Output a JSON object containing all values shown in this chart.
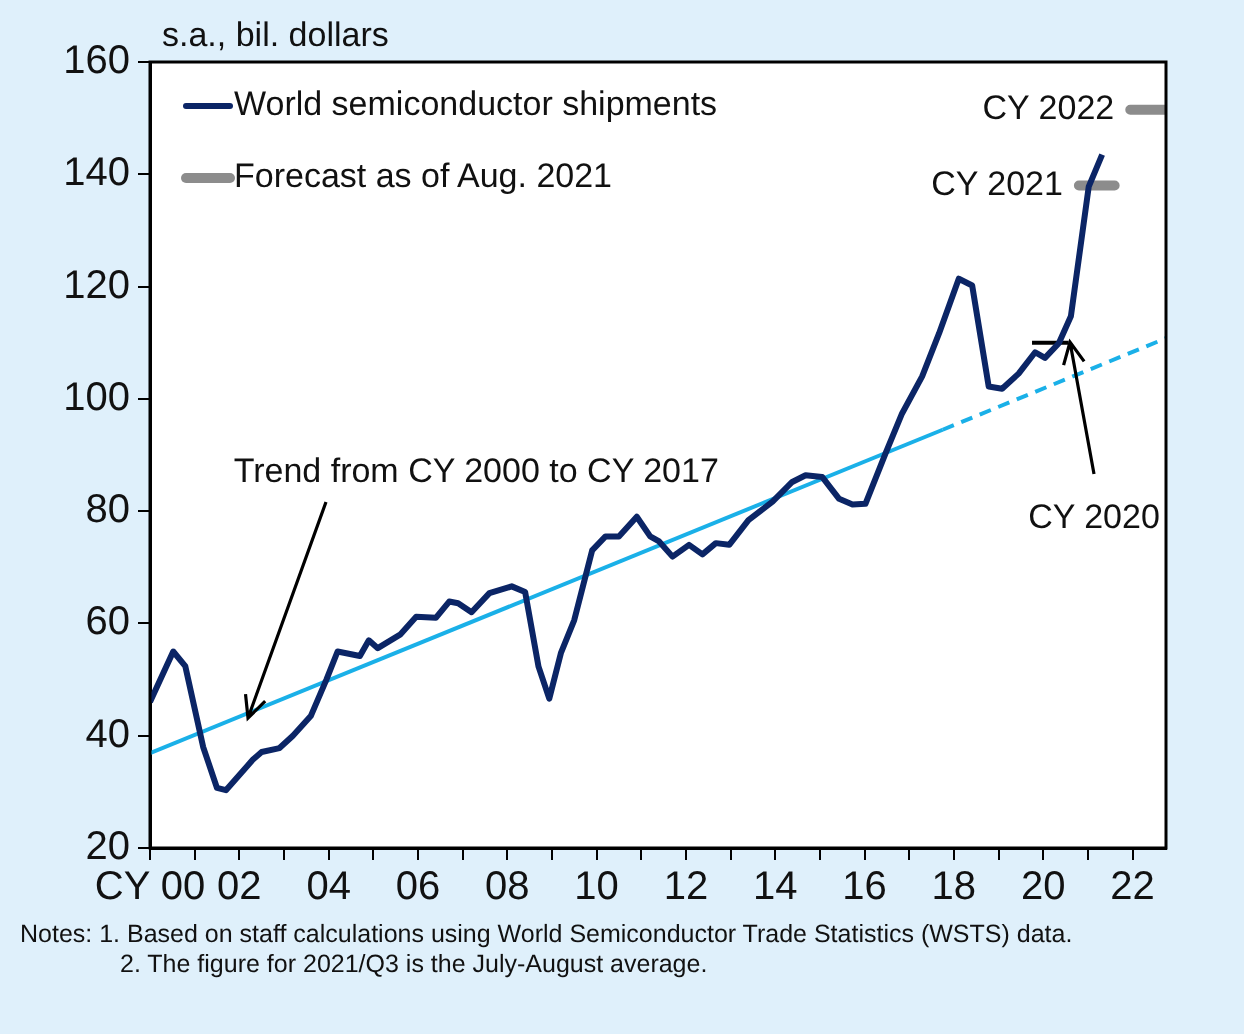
{
  "chart_data": {
    "type": "line",
    "ylabel": "s.a., bil. dollars",
    "xlim": [
      2000,
      2022.75
    ],
    "ylim": [
      20,
      160
    ],
    "xticks": [
      {
        "value": 2000,
        "label": "CY 00"
      },
      {
        "value": 2001,
        "label": null
      },
      {
        "value": 2002,
        "label": "02"
      },
      {
        "value": 2003,
        "label": null
      },
      {
        "value": 2004,
        "label": "04"
      },
      {
        "value": 2005,
        "label": null
      },
      {
        "value": 2006,
        "label": "06"
      },
      {
        "value": 2007,
        "label": null
      },
      {
        "value": 2008,
        "label": "08"
      },
      {
        "value": 2009,
        "label": null
      },
      {
        "value": 2010,
        "label": "10"
      },
      {
        "value": 2011,
        "label": null
      },
      {
        "value": 2012,
        "label": "12"
      },
      {
        "value": 2013,
        "label": null
      },
      {
        "value": 2014,
        "label": "14"
      },
      {
        "value": 2015,
        "label": null
      },
      {
        "value": 2016,
        "label": "16"
      },
      {
        "value": 2017,
        "label": null
      },
      {
        "value": 2018,
        "label": "18"
      },
      {
        "value": 2019,
        "label": null
      },
      {
        "value": 2020,
        "label": "20"
      },
      {
        "value": 2021,
        "label": null
      },
      {
        "value": 2022,
        "label": "22"
      }
    ],
    "yticks": [
      20,
      40,
      60,
      80,
      100,
      120,
      140,
      160
    ],
    "grid": false,
    "legend": "top left",
    "marker": "none",
    "line_style": "solid",
    "series": [
      {
        "name": "World semiconductor shipments",
        "color": "#0b2566",
        "x": [
          2000.0,
          2000.52,
          2000.79,
          2001.19,
          2001.5,
          2001.7,
          2002.3,
          2002.5,
          2002.9,
          2003.2,
          2003.6,
          2003.95,
          2004.2,
          2004.7,
          2004.9,
          2005.1,
          2005.6,
          2005.96,
          2006.4,
          2006.7,
          2006.9,
          2007.2,
          2007.6,
          2008.1,
          2008.4,
          2008.7,
          2008.94,
          2009.2,
          2009.5,
          2009.9,
          2010.2,
          2010.5,
          2010.9,
          2011.2,
          2011.4,
          2011.7,
          2012.07,
          2012.37,
          2012.67,
          2012.97,
          2013.4,
          2013.94,
          2014.38,
          2014.68,
          2015.05,
          2015.43,
          2015.73,
          2016.02,
          2016.47,
          2016.84,
          2017.29,
          2017.67,
          2018.11,
          2018.41,
          2018.78,
          2019.08,
          2019.45,
          2019.82,
          2020.04,
          2020.35,
          2020.62,
          2021.02,
          2021.32
        ],
        "values": [
          46,
          55,
          52.4,
          38,
          30.7,
          30.3,
          35.7,
          37.1,
          37.8,
          40,
          43.5,
          50,
          55,
          54.2,
          57,
          55.6,
          58,
          61.2,
          61,
          63.9,
          63.6,
          62,
          65.4,
          66.6,
          65.6,
          52.3,
          46.6,
          54.7,
          60.6,
          73,
          75.5,
          75.5,
          79,
          75.5,
          74.6,
          71.9,
          74,
          72.3,
          74.3,
          74,
          78.4,
          81.7,
          85.2,
          86.4,
          86.1,
          82.2,
          81.2,
          81.3,
          90.3,
          97.4,
          104,
          111.7,
          121.4,
          120.2,
          102.2,
          101.8,
          104.5,
          108.3,
          107.3,
          109.9,
          114.7,
          137.8,
          143.5
        ]
      },
      {
        "color": "#1ab0e8",
        "x": [
          2000,
          2017.75
        ],
        "values": [
          36.9,
          94.5
        ]
      },
      {
        "color": "#1ab0e8",
        "line_style": "dashed",
        "x": [
          2017.75,
          2022.75
        ],
        "values": [
          94.5,
          110.8
        ]
      },
      {
        "name": "Forecast as of Aug. 2021",
        "color": "#8c8c8c",
        "x": [
          2020.8,
          2021.6,
          2021.8,
          2021.95,
          2022.75
        ],
        "values": [
          138,
          138,
          null,
          151.5,
          151.5
        ]
      },
      {
        "color": "#000000",
        "x": [
          2019.75,
          2020.57
        ],
        "values": [
          110,
          110
        ]
      }
    ],
    "annotations": [
      {
        "text": "Trend from CY 2000 to CY 2017",
        "x": 2002.2,
        "y": 43
      },
      {
        "text": "CY 2020",
        "x": 2020.6,
        "y": 110
      },
      {
        "text": "CY 2021",
        "x": 2020.8,
        "y": 138
      },
      {
        "text": "CY 2022",
        "x": 2021.95,
        "y": 151.5
      },
      "Notes: 1. Based on staff calculations using World Semiconductor Trade Statistics (WSTS) data.",
      "2. The figure for 2021/Q3 is the July-August average."
    ]
  }
}
